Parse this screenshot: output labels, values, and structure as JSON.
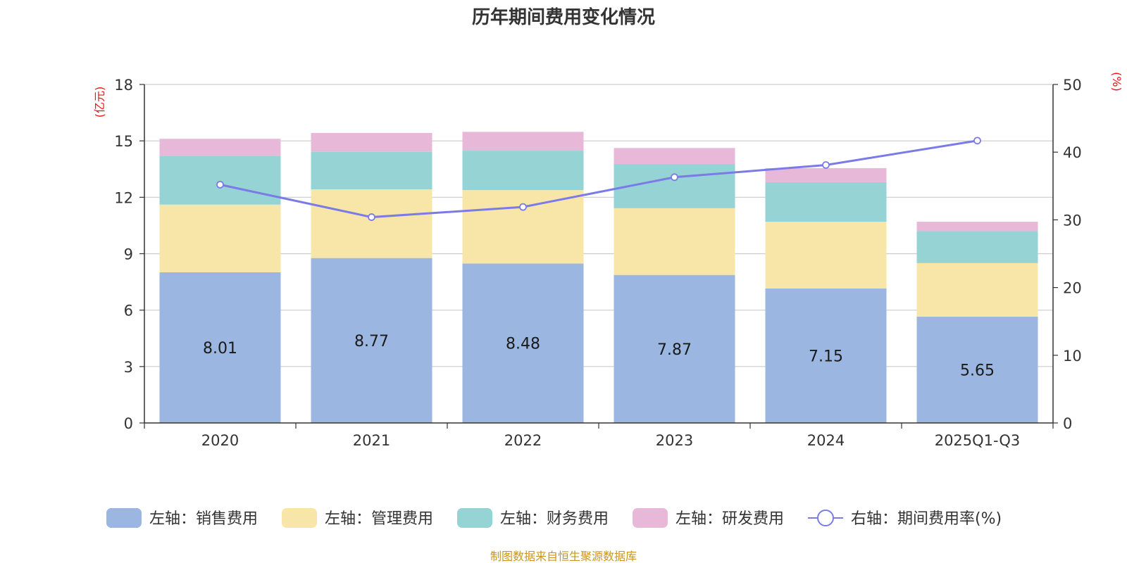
{
  "chart_data": {
    "type": "bar",
    "stacked": true,
    "title": "历年期间费用变化情况",
    "categories": [
      "2020",
      "2021",
      "2022",
      "2023",
      "2024",
      "2025Q1-Q3"
    ],
    "left_axis": {
      "unit_label": "(亿元)",
      "range": [
        0,
        18
      ],
      "ticks": [
        "0",
        "3",
        "6",
        "9",
        "12",
        "15",
        "18"
      ]
    },
    "right_axis": {
      "unit_label": "(%)",
      "range": [
        0,
        50
      ],
      "ticks": [
        "0",
        "10",
        "20",
        "30",
        "40",
        "50"
      ]
    },
    "grid": true,
    "series": [
      {
        "name": "左轴：销售费用",
        "axis": "left",
        "kind": "bar",
        "values": [
          8.01,
          8.77,
          8.48,
          7.87,
          7.15,
          5.65
        ],
        "show_labels": true
      },
      {
        "name": "左轴：管理费用",
        "axis": "left",
        "kind": "bar",
        "values": [
          3.6,
          3.65,
          3.9,
          3.55,
          3.55,
          2.85
        ]
      },
      {
        "name": "左轴：财务费用",
        "axis": "left",
        "kind": "bar",
        "values": [
          2.6,
          2.0,
          2.1,
          2.35,
          2.1,
          1.7
        ]
      },
      {
        "name": "左轴：研发费用",
        "axis": "left",
        "kind": "bar",
        "values": [
          0.9,
          1.0,
          1.0,
          0.85,
          0.75,
          0.5
        ]
      },
      {
        "name": "右轴：期间费用率(%)",
        "axis": "right",
        "kind": "line",
        "values": [
          35.2,
          30.4,
          31.9,
          36.3,
          38.1,
          41.7
        ]
      }
    ],
    "legend_position": "bottom",
    "source": "制图数据来自恒生聚源数据库"
  },
  "colors": {
    "series": [
      "#9bb6e0",
      "#f8e6a8",
      "#96d3d4",
      "#e8b8d9",
      "#7b7be8"
    ],
    "unit": "#ee1111",
    "source": "#c8961e",
    "grid": "#cccccc",
    "axis": "#333333"
  }
}
